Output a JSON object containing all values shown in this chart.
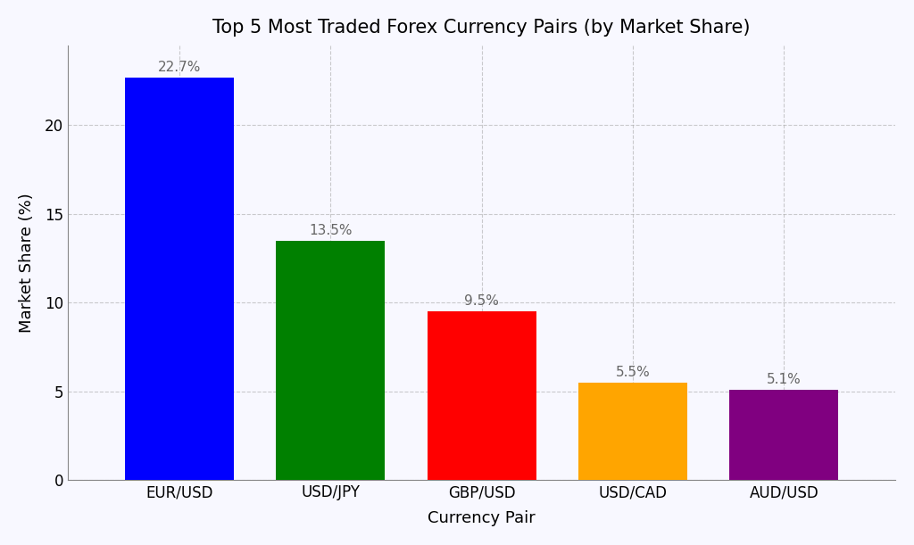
{
  "title": "Top 5 Most Traded Forex Currency Pairs (by Market Share)",
  "categories": [
    "EUR/USD",
    "USD/JPY",
    "GBP/USD",
    "USD/CAD",
    "AUD/USD"
  ],
  "values": [
    22.7,
    13.5,
    9.5,
    5.5,
    5.1
  ],
  "bar_colors": [
    "#0000ff",
    "#008000",
    "#ff0000",
    "#ffa500",
    "#800080"
  ],
  "xlabel": "Currency Pair",
  "ylabel": "Market Share (%)",
  "ylim": [
    0,
    24.5
  ],
  "yticks": [
    0,
    5,
    10,
    15,
    20
  ],
  "background_color": "#f8f8ff",
  "grid_color": "#aaaaaa",
  "title_fontsize": 15,
  "label_fontsize": 13,
  "tick_fontsize": 12,
  "annotation_fontsize": 11,
  "bar_width": 0.72
}
